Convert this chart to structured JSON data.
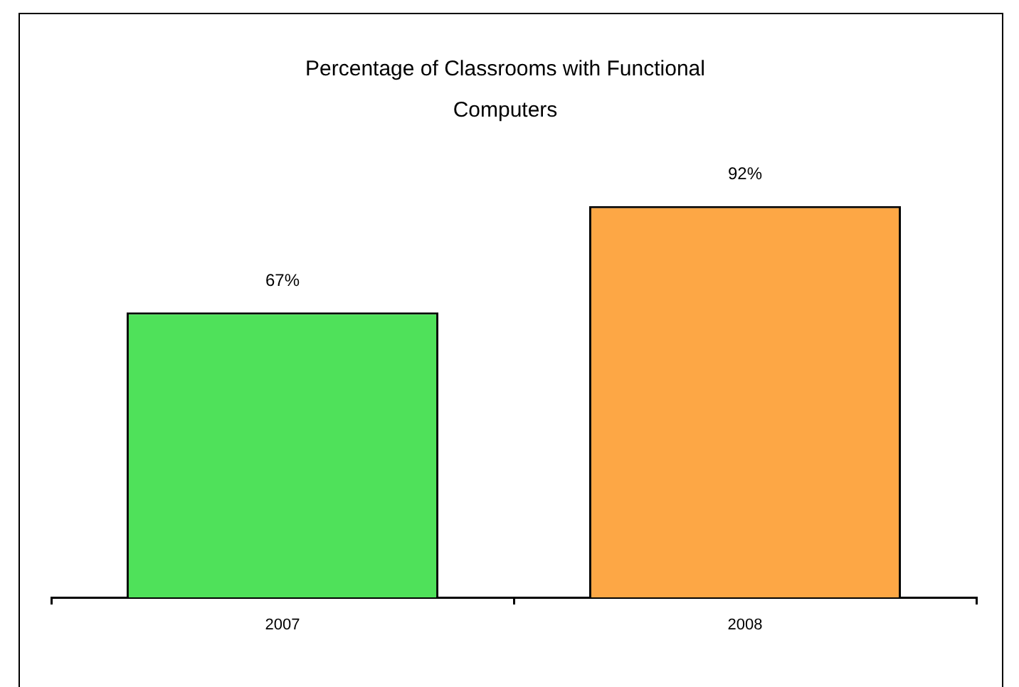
{
  "chart_data": {
    "type": "bar",
    "title": "Percentage of Classrooms with Functional Computers",
    "categories": [
      "2007",
      "2008"
    ],
    "values": [
      67,
      92
    ],
    "colors": [
      "#4fe15a",
      "#fda745"
    ],
    "value_labels": [
      "67%",
      "92%"
    ]
  }
}
